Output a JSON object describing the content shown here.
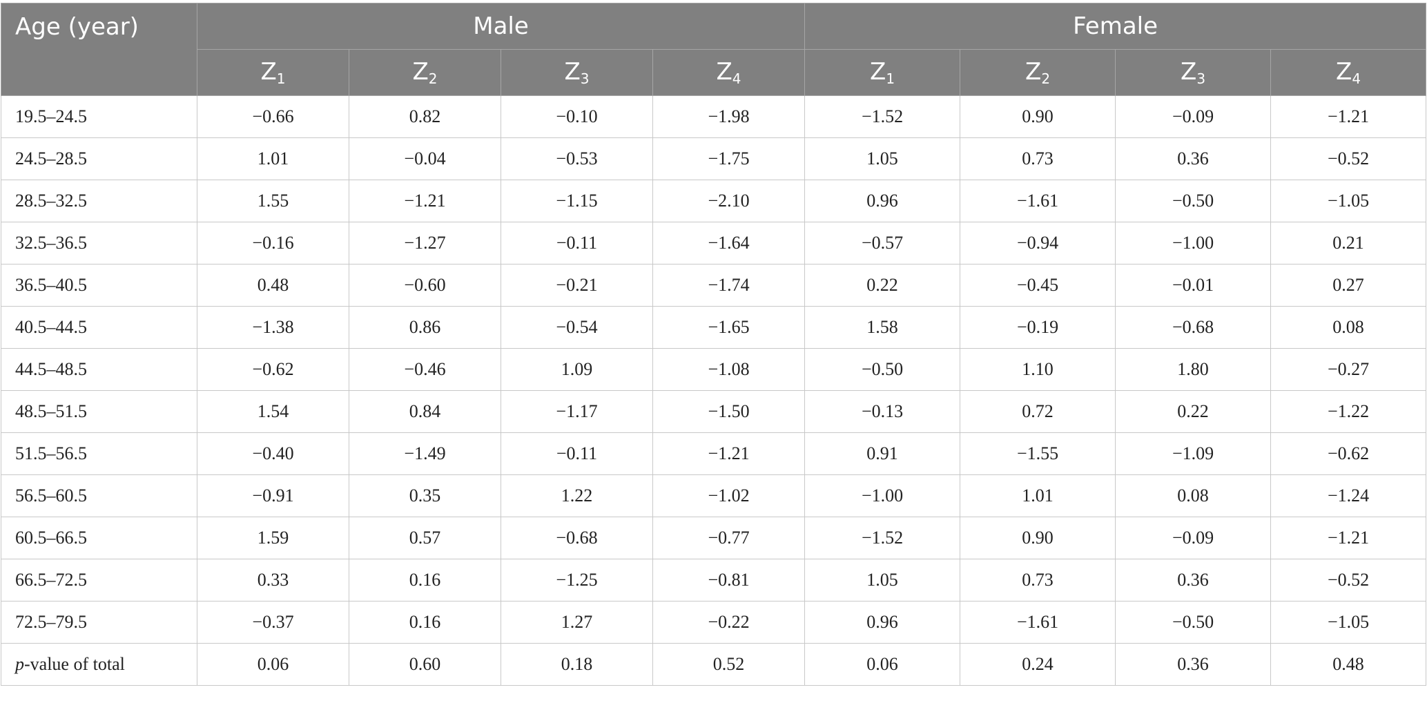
{
  "header": {
    "age_label": "Age (year)",
    "groups": [
      "Male",
      "Female"
    ],
    "z_labels": [
      {
        "base": "Z",
        "sub": "1"
      },
      {
        "base": "Z",
        "sub": "2"
      },
      {
        "base": "Z",
        "sub": "3"
      },
      {
        "base": "Z",
        "sub": "4"
      }
    ]
  },
  "rows": [
    {
      "age": "19.5–24.5",
      "values": [
        "−0.66",
        "0.82",
        "−0.10",
        "−1.98",
        "−1.52",
        "0.90",
        "−0.09",
        "−1.21"
      ]
    },
    {
      "age": "24.5–28.5",
      "values": [
        "1.01",
        "−0.04",
        "−0.53",
        "−1.75",
        "1.05",
        "0.73",
        "0.36",
        "−0.52"
      ]
    },
    {
      "age": "28.5–32.5",
      "values": [
        "1.55",
        "−1.21",
        "−1.15",
        "−2.10",
        "0.96",
        "−1.61",
        "−0.50",
        "−1.05"
      ]
    },
    {
      "age": "32.5–36.5",
      "values": [
        "−0.16",
        "−1.27",
        "−0.11",
        "−1.64",
        "−0.57",
        "−0.94",
        "−1.00",
        "0.21"
      ]
    },
    {
      "age": "36.5–40.5",
      "values": [
        "0.48",
        "−0.60",
        "−0.21",
        "−1.74",
        "0.22",
        "−0.45",
        "−0.01",
        "0.27"
      ]
    },
    {
      "age": "40.5–44.5",
      "values": [
        "−1.38",
        "0.86",
        "−0.54",
        "−1.65",
        "1.58",
        "−0.19",
        "−0.68",
        "0.08"
      ]
    },
    {
      "age": "44.5–48.5",
      "values": [
        "−0.62",
        "−0.46",
        "1.09",
        "−1.08",
        "−0.50",
        "1.10",
        "1.80",
        "−0.27"
      ]
    },
    {
      "age": "48.5–51.5",
      "values": [
        "1.54",
        "0.84",
        "−1.17",
        "−1.50",
        "−0.13",
        "0.72",
        "0.22",
        "−1.22"
      ]
    },
    {
      "age": "51.5–56.5",
      "values": [
        "−0.40",
        "−1.49",
        "−0.11",
        "−1.21",
        "0.91",
        "−1.55",
        "−1.09",
        "−0.62"
      ]
    },
    {
      "age": "56.5–60.5",
      "values": [
        "−0.91",
        "0.35",
        "1.22",
        "−1.02",
        "−1.00",
        "1.01",
        "0.08",
        "−1.24"
      ]
    },
    {
      "age": "60.5–66.5",
      "values": [
        "1.59",
        "0.57",
        "−0.68",
        "−0.77",
        "−1.52",
        "0.90",
        "−0.09",
        "−1.21"
      ]
    },
    {
      "age": "66.5–72.5",
      "values": [
        "0.33",
        "0.16",
        "−1.25",
        "−0.81",
        "1.05",
        "0.73",
        "0.36",
        "−0.52"
      ]
    },
    {
      "age": "72.5–79.5",
      "values": [
        "−0.37",
        "0.16",
        "1.27",
        "−0.22",
        "0.96",
        "−1.61",
        "−0.50",
        "−1.05"
      ]
    }
  ],
  "total_row": {
    "label_italic": "p",
    "label_rest": "-value of total",
    "values": [
      "0.06",
      "0.60",
      "0.18",
      "0.52",
      "0.06",
      "0.24",
      "0.36",
      "0.48"
    ]
  }
}
